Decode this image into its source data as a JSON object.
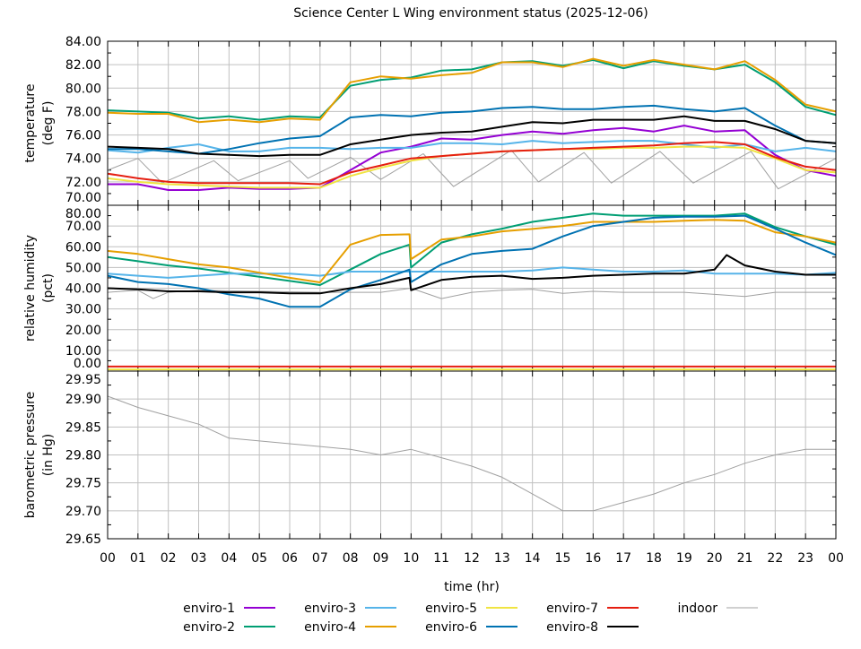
{
  "title": "Science Center L Wing environment status (2025-12-06)",
  "xlabel": "time (hr)",
  "x_ticks": [
    "00",
    "01",
    "02",
    "03",
    "04",
    "05",
    "06",
    "07",
    "08",
    "09",
    "10",
    "11",
    "12",
    "13",
    "14",
    "15",
    "16",
    "17",
    "18",
    "19",
    "20",
    "21",
    "22",
    "23",
    "00"
  ],
  "x_range_hours": [
    0,
    24
  ],
  "grid": true,
  "legend_placement": "bottom",
  "series_styles": [
    {
      "name": "enviro-1",
      "color": "#9400d3"
    },
    {
      "name": "enviro-2",
      "color": "#009e73"
    },
    {
      "name": "enviro-3",
      "color": "#56b4e9"
    },
    {
      "name": "enviro-4",
      "color": "#e69f00"
    },
    {
      "name": "enviro-5",
      "color": "#f0e442"
    },
    {
      "name": "enviro-6",
      "color": "#0072b2"
    },
    {
      "name": "enviro-7",
      "color": "#e51e10"
    },
    {
      "name": "enviro-8",
      "color": "#000000"
    },
    {
      "name": "indoor",
      "color": "#a0a0a0"
    }
  ],
  "chart_data": [
    {
      "type": "line",
      "ylabel": [
        "temperature",
        "(deg F)"
      ],
      "ylim": [
        70,
        84
      ],
      "y_ticks": [
        "70.00",
        "72.00",
        "74.00",
        "76.00",
        "78.00",
        "80.00",
        "82.00",
        "84.00"
      ],
      "x": [
        0,
        1,
        2,
        3,
        4,
        5,
        6,
        7,
        8,
        9,
        10,
        11,
        12,
        13,
        14,
        15,
        16,
        17,
        18,
        19,
        20,
        21,
        22,
        23,
        24
      ],
      "series": [
        {
          "name": "enviro-1",
          "values": [
            71.8,
            71.8,
            71.3,
            71.3,
            71.5,
            71.4,
            71.4,
            71.5,
            73.0,
            74.5,
            75.0,
            75.7,
            75.6,
            76.0,
            76.3,
            76.1,
            76.4,
            76.6,
            76.3,
            76.8,
            76.3,
            76.4,
            74.3,
            73.0,
            72.5
          ]
        },
        {
          "name": "enviro-2",
          "values": [
            78.1,
            78.0,
            77.9,
            77.4,
            77.6,
            77.3,
            77.6,
            77.5,
            80.2,
            80.7,
            80.9,
            81.5,
            81.6,
            82.2,
            82.3,
            81.9,
            82.4,
            81.7,
            82.3,
            81.9,
            81.6,
            82.0,
            80.5,
            78.4,
            77.7
          ]
        },
        {
          "name": "enviro-3",
          "values": [
            74.7,
            74.5,
            74.9,
            75.2,
            74.6,
            74.6,
            74.9,
            74.9,
            74.8,
            74.9,
            74.9,
            75.3,
            75.3,
            75.2,
            75.5,
            75.3,
            75.4,
            75.5,
            75.5,
            75.2,
            74.9,
            75.2,
            74.6,
            74.9,
            74.6
          ]
        },
        {
          "name": "enviro-4",
          "values": [
            77.9,
            77.8,
            77.8,
            77.1,
            77.3,
            77.1,
            77.4,
            77.3,
            80.5,
            81.0,
            80.8,
            81.1,
            81.3,
            82.2,
            82.2,
            81.8,
            82.5,
            81.9,
            82.4,
            82.0,
            81.6,
            82.3,
            80.7,
            78.6,
            78.0
          ]
        },
        {
          "name": "enviro-5",
          "values": [
            72.3,
            72.0,
            71.8,
            71.7,
            71.6,
            71.5,
            71.5,
            71.5,
            72.5,
            73.2,
            73.8,
            74.2,
            74.4,
            74.6,
            74.7,
            74.8,
            74.8,
            74.9,
            74.9,
            75.0,
            75.0,
            74.9,
            74.0,
            73.0,
            72.8
          ]
        },
        {
          "name": "enviro-6",
          "values": [
            74.8,
            74.8,
            74.6,
            74.4,
            74.8,
            75.3,
            75.7,
            75.9,
            77.5,
            77.7,
            77.6,
            77.9,
            78.0,
            78.3,
            78.4,
            78.2,
            78.2,
            78.4,
            78.5,
            78.2,
            78.0,
            78.3,
            76.8,
            75.5,
            75.3
          ]
        },
        {
          "name": "enviro-7",
          "values": [
            72.7,
            72.3,
            72.0,
            71.9,
            71.9,
            71.9,
            71.9,
            71.8,
            72.8,
            73.4,
            74.0,
            74.2,
            74.4,
            74.6,
            74.7,
            74.8,
            74.9,
            75.0,
            75.1,
            75.3,
            75.4,
            75.2,
            74.1,
            73.3,
            73.0
          ]
        },
        {
          "name": "enviro-8",
          "values": [
            75.0,
            74.9,
            74.8,
            74.4,
            74.3,
            74.2,
            74.3,
            74.3,
            75.2,
            75.6,
            76.0,
            76.2,
            76.3,
            76.7,
            77.1,
            77.0,
            77.3,
            77.3,
            77.3,
            77.6,
            77.2,
            77.2,
            76.5,
            75.5,
            75.3
          ]
        },
        {
          "name": "indoor",
          "points": [
            [
              0,
              73.0
            ],
            [
              1.0,
              74.0
            ],
            [
              1.8,
              71.9
            ],
            [
              3.5,
              73.8
            ],
            [
              4.3,
              72.1
            ],
            [
              6.0,
              73.8
            ],
            [
              6.6,
              72.3
            ],
            [
              8.0,
              74.1
            ],
            [
              9.0,
              72.2
            ],
            [
              10.4,
              74.4
            ],
            [
              11.4,
              71.6
            ],
            [
              13.3,
              74.7
            ],
            [
              14.2,
              72.0
            ],
            [
              15.7,
              74.5
            ],
            [
              16.6,
              71.9
            ],
            [
              18.2,
              74.6
            ],
            [
              19.3,
              71.9
            ],
            [
              21.2,
              74.6
            ],
            [
              22.1,
              71.4
            ],
            [
              24,
              74.0
            ]
          ]
        }
      ]
    },
    {
      "type": "line",
      "ylabel": [
        "relative humidity",
        "(pct)"
      ],
      "ylim": [
        0,
        80
      ],
      "y_ticks": [
        "0.00",
        "10.00",
        "20.00",
        "30.00",
        "40.00",
        "50.00",
        "60.00",
        "70.00",
        "80.00"
      ],
      "x": [
        0,
        1,
        2,
        3,
        4,
        5,
        6,
        7,
        8,
        9,
        10,
        11,
        12,
        13,
        14,
        15,
        16,
        17,
        18,
        19,
        20,
        21,
        22,
        23,
        24
      ],
      "series": [
        {
          "name": "enviro-2",
          "points": [
            [
              0,
              55
            ],
            [
              1,
              53
            ],
            [
              2,
              51
            ],
            [
              3,
              49.5
            ],
            [
              4,
              47.5
            ],
            [
              5,
              45.5
            ],
            [
              6,
              43.5
            ],
            [
              7,
              41.5
            ],
            [
              8,
              49
            ],
            [
              9,
              56.5
            ],
            [
              9.95,
              61
            ],
            [
              10.0,
              50
            ],
            [
              11,
              62
            ],
            [
              12,
              66
            ],
            [
              13,
              68.7
            ],
            [
              14,
              72
            ],
            [
              15,
              74
            ],
            [
              16,
              76
            ],
            [
              17,
              75
            ],
            [
              18,
              75
            ],
            [
              19,
              75
            ],
            [
              20,
              75
            ],
            [
              21,
              76
            ],
            [
              22,
              69.5
            ],
            [
              23,
              65
            ],
            [
              24,
              61
            ]
          ]
        },
        {
          "name": "enviro-3",
          "values": [
            47,
            46,
            45,
            46,
            47,
            47,
            47,
            46,
            48,
            48,
            48,
            48,
            48,
            48,
            48.5,
            50,
            49,
            48,
            48,
            48.5,
            47,
            47,
            47,
            46.5,
            47.5
          ]
        },
        {
          "name": "enviro-4",
          "points": [
            [
              0,
              58
            ],
            [
              1,
              56.5
            ],
            [
              2,
              54
            ],
            [
              3,
              51.5
            ],
            [
              4,
              50
            ],
            [
              5,
              47.5
            ],
            [
              6,
              45
            ],
            [
              7,
              42.8
            ],
            [
              8,
              61
            ],
            [
              9,
              65.7
            ],
            [
              9.95,
              66
            ],
            [
              10.0,
              54
            ],
            [
              11,
              63.5
            ],
            [
              12,
              65
            ],
            [
              13,
              67.4
            ],
            [
              14,
              68.6
            ],
            [
              15,
              70
            ],
            [
              16,
              72
            ],
            [
              17,
              72
            ],
            [
              18,
              72
            ],
            [
              19,
              72.5
            ],
            [
              20,
              73
            ],
            [
              21,
              72.5
            ],
            [
              22,
              67
            ],
            [
              23,
              65
            ],
            [
              24,
              62
            ]
          ]
        },
        {
          "name": "enviro-5",
          "values": [
            0.8,
            0.8,
            0.8,
            0.8,
            0.8,
            0.8,
            0.8,
            0.8,
            0.8,
            0.8,
            0.8,
            0.8,
            0.8,
            0.8,
            0.8,
            0.8,
            0.8,
            0.8,
            0.8,
            0.8,
            0.8,
            0.8,
            0.8,
            0.8,
            0.8
          ]
        },
        {
          "name": "enviro-6",
          "points": [
            [
              0,
              46
            ],
            [
              1,
              43
            ],
            [
              2,
              42
            ],
            [
              3,
              40
            ],
            [
              4,
              37
            ],
            [
              5,
              35
            ],
            [
              6,
              31
            ],
            [
              7,
              31
            ],
            [
              8,
              39.5
            ],
            [
              9,
              44
            ],
            [
              9.95,
              49
            ],
            [
              10.0,
              43
            ],
            [
              11,
              51.5
            ],
            [
              12,
              56.5
            ],
            [
              13,
              58
            ],
            [
              14,
              59
            ],
            [
              15,
              65
            ],
            [
              16,
              70
            ],
            [
              17,
              72
            ],
            [
              18,
              74
            ],
            [
              19,
              74.5
            ],
            [
              20,
              74.5
            ],
            [
              21,
              75
            ],
            [
              22,
              68.7
            ],
            [
              23,
              62
            ],
            [
              24,
              56
            ]
          ]
        },
        {
          "name": "enviro-7",
          "values": [
            2.2,
            2.2,
            2.2,
            2.2,
            2.2,
            2.2,
            2.2,
            2.2,
            2.2,
            2.2,
            2.2,
            2.2,
            2.2,
            2.2,
            2.2,
            2.2,
            2.2,
            2.2,
            2.2,
            2.2,
            2.2,
            2.2,
            2.2,
            2.2,
            2.2
          ]
        },
        {
          "name": "enviro-8",
          "points": [
            [
              0,
              40
            ],
            [
              1,
              39.5
            ],
            [
              2,
              38.5
            ],
            [
              3,
              38.5
            ],
            [
              4,
              38
            ],
            [
              5,
              38
            ],
            [
              6,
              37.5
            ],
            [
              7,
              37.5
            ],
            [
              8,
              40
            ],
            [
              9,
              42
            ],
            [
              9.95,
              45
            ],
            [
              10.0,
              39
            ],
            [
              11,
              44
            ],
            [
              12,
              45.5
            ],
            [
              13,
              46
            ],
            [
              14,
              44.5
            ],
            [
              15,
              45
            ],
            [
              16,
              46
            ],
            [
              17,
              46.5
            ],
            [
              18,
              47
            ],
            [
              19,
              47
            ],
            [
              20,
              49
            ],
            [
              20.4,
              56
            ],
            [
              21,
              51
            ],
            [
              22,
              48
            ],
            [
              23,
              46.5
            ],
            [
              24,
              46.5
            ]
          ]
        },
        {
          "name": "indoor",
          "points": [
            [
              0,
              38
            ],
            [
              1,
              39
            ],
            [
              1.5,
              35
            ],
            [
              2,
              38
            ],
            [
              3,
              39
            ],
            [
              7,
              38
            ],
            [
              8,
              38
            ],
            [
              9,
              38
            ],
            [
              10,
              40
            ],
            [
              11,
              35
            ],
            [
              12,
              38
            ],
            [
              13,
              39
            ],
            [
              14,
              39.5
            ],
            [
              15,
              37.5
            ],
            [
              16,
              38.5
            ],
            [
              17,
              38
            ],
            [
              18,
              38
            ],
            [
              19,
              38
            ],
            [
              20,
              37
            ],
            [
              21,
              36
            ],
            [
              22,
              38
            ],
            [
              24,
              38
            ]
          ]
        }
      ]
    },
    {
      "type": "line",
      "ylabel": [
        "barometric pressure",
        "(in Hg)"
      ],
      "ylim": [
        29.65,
        29.95
      ],
      "y_ticks": [
        "29.65",
        "29.70",
        "29.75",
        "29.80",
        "29.85",
        "29.90",
        "29.95"
      ],
      "x": [
        0,
        1,
        2,
        3,
        4,
        5,
        6,
        7,
        8,
        9,
        10,
        11,
        12,
        13,
        14,
        15,
        16,
        17,
        18,
        19,
        20,
        21,
        22,
        23,
        24
      ],
      "series": [
        {
          "name": "indoor",
          "values": [
            29.905,
            29.885,
            29.87,
            29.855,
            29.83,
            29.825,
            29.82,
            29.815,
            29.81,
            29.8,
            29.81,
            29.795,
            29.78,
            29.76,
            29.73,
            29.7,
            29.7,
            29.715,
            29.73,
            29.75,
            29.765,
            29.785,
            29.8,
            29.81,
            29.81
          ]
        }
      ]
    }
  ]
}
